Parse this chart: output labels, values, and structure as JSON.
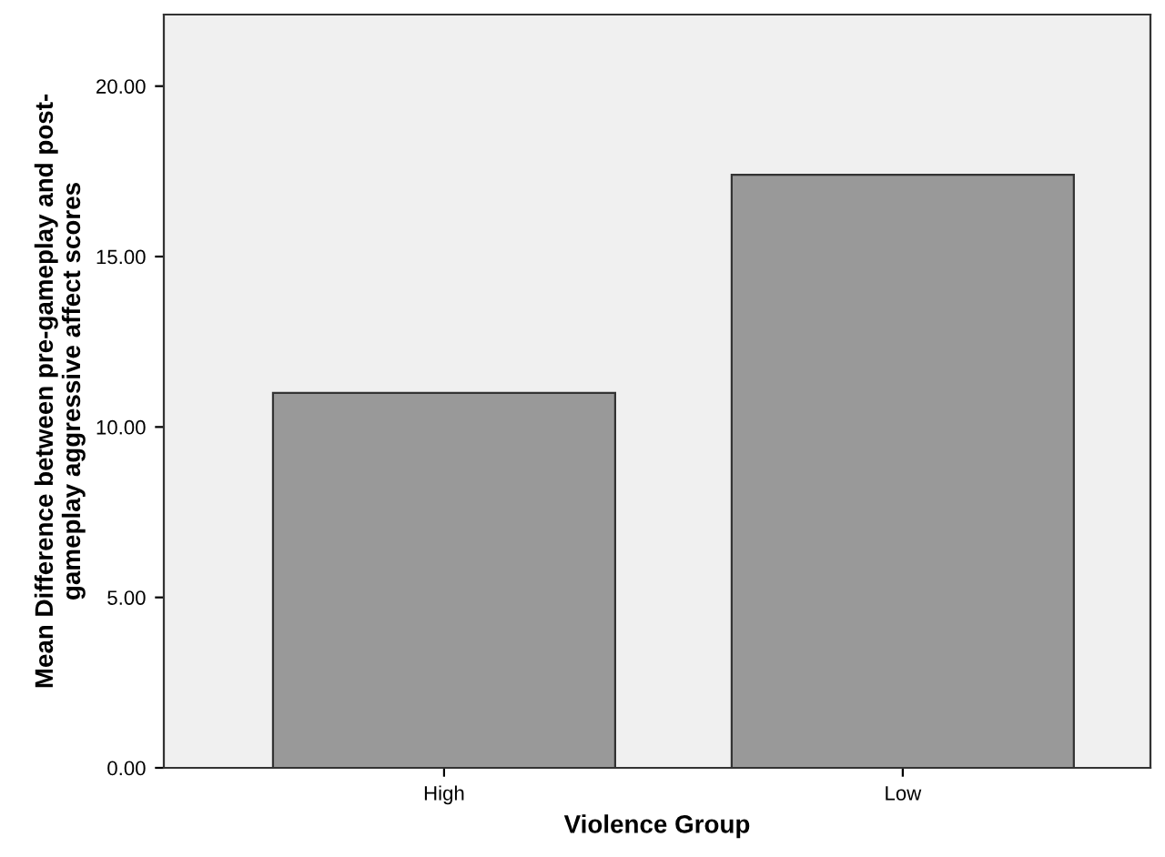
{
  "chart_data": {
    "type": "bar",
    "xlabel": "Violence Group",
    "ylabel": "Mean Difference between pre-gameplay and post-\ngameplay aggressive affect scores",
    "categories": [
      "High",
      "Low"
    ],
    "values": [
      11.0,
      17.4
    ],
    "color": "#999999",
    "ylim": [
      0,
      22.1
    ],
    "yticks": [
      {
        "value": 0,
        "label": "0.00"
      },
      {
        "value": 5,
        "label": "5.00"
      },
      {
        "value": 10,
        "label": "10.00"
      },
      {
        "value": 15,
        "label": "15.00"
      },
      {
        "value": 20,
        "label": "20.00"
      }
    ],
    "grid": false,
    "legend": false
  }
}
